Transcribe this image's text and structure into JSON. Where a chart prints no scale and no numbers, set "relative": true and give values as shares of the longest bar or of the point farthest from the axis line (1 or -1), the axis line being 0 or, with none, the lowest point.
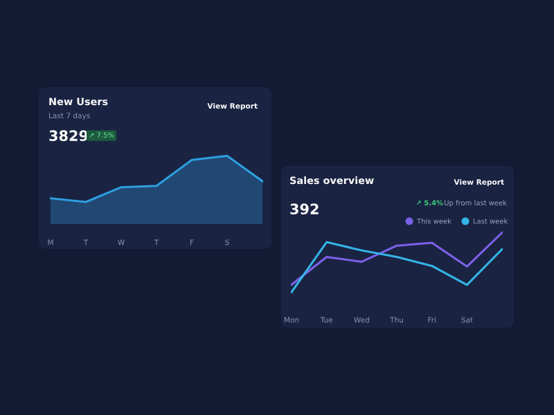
{
  "chart_data": [
    {
      "type": "area",
      "title": "New Users",
      "subtitle": "Last 7 days",
      "annotations": [
        "3829",
        "↗ 7.5%",
        "View Report"
      ],
      "categories": [
        "M",
        "T",
        "W",
        "T",
        "F",
        "S",
        null
      ],
      "relative": true,
      "tick_labels": "x",
      "grid": false,
      "legend": false,
      "series": [
        {
          "color": "#2e9fe0",
          "values": [
            0.08,
            0,
            0.32,
            0.35,
            0.91,
            1,
            0.45
          ]
        }
      ]
    },
    {
      "type": "line",
      "title": "Sales overview",
      "annotations": [
        "392",
        "↗ 5.4%",
        "Up from last week",
        "View Report"
      ],
      "categories": [
        "Mon",
        "Tue",
        "Wed",
        "Thu",
        "Fri",
        "Sat",
        null
      ],
      "relative": true,
      "tick_labels": "x",
      "grid": false,
      "legend": "top right",
      "marker": "none",
      "series": [
        {
          "name": "This week",
          "color": "#7b61e8",
          "values": [
            0.125,
            0.59,
            0.51,
            0.78,
            0.83,
            0.43,
            1
          ]
        },
        {
          "name": "Last week",
          "color": "#34b4e6",
          "values": [
            0,
            0.84,
            0.7,
            0.59,
            0.44,
            0.12,
            0.72
          ]
        }
      ]
    }
  ]
}
